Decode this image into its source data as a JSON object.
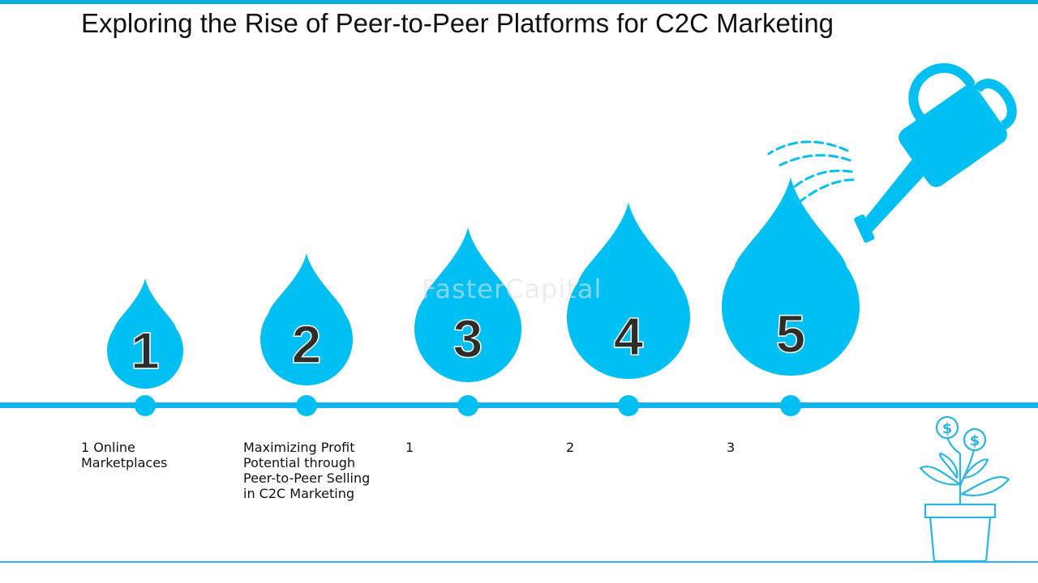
{
  "title": "Exploring the Rise of Peer-to-Peer Platforms for C2C Marketing",
  "watermark": "FasterCapital",
  "colors": {
    "accent": "#00bff3",
    "line": "#10b4ea",
    "number_text": "#2d2d2d",
    "outline": "#29b6e6"
  },
  "steps": [
    {
      "number": "1",
      "label": "1 Online\nMarketplaces"
    },
    {
      "number": "2",
      "label": "Maximizing Profit\nPotential through\nPeer-to-Peer Selling\nin C2C Marketing"
    },
    {
      "number": "3",
      "label": "1"
    },
    {
      "number": "4",
      "label": "2"
    },
    {
      "number": "5",
      "label": "3"
    }
  ],
  "icons": {
    "watering_can": "watering-can-icon",
    "plant": "money-plant-icon"
  }
}
